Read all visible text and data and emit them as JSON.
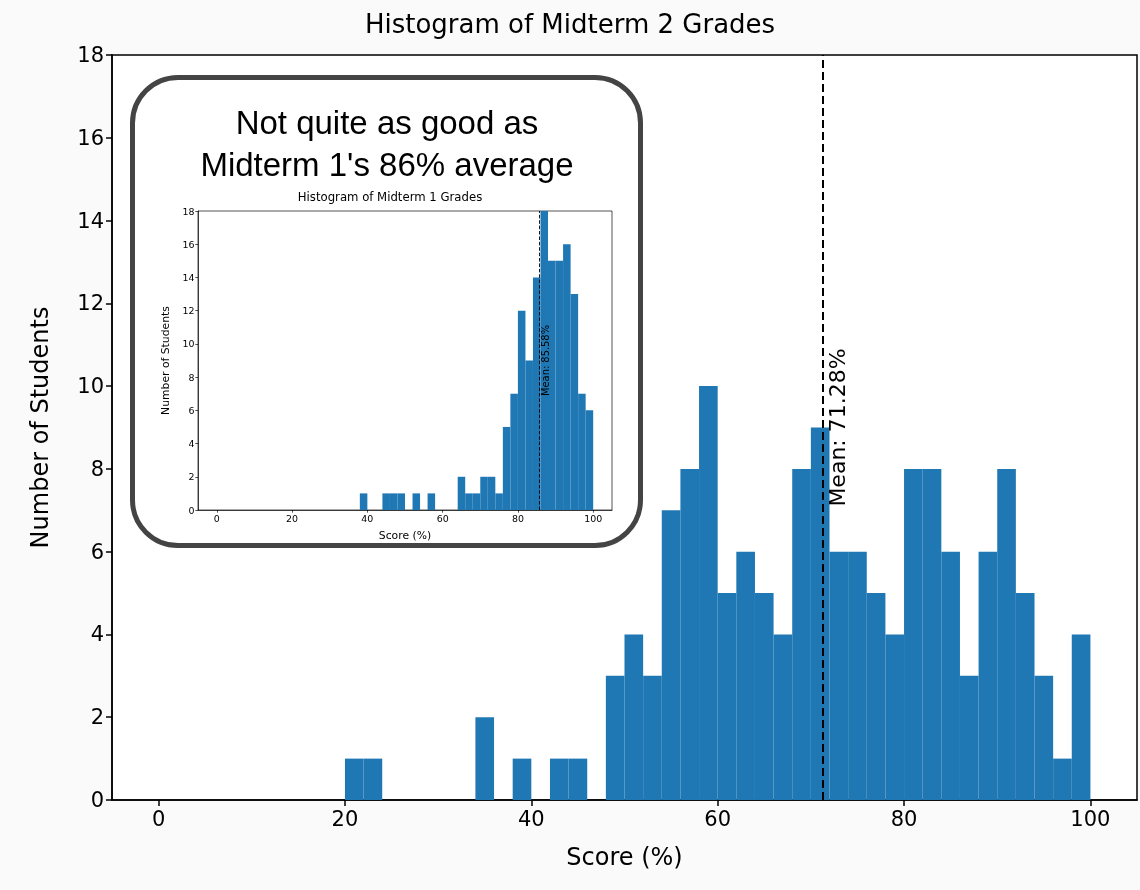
{
  "chart_data": [
    {
      "type": "histogram",
      "title": "Histogram of Midterm 2 Grades",
      "xlabel": "Score (%)",
      "ylabel": "Number of Students",
      "color": "#1f77b4",
      "bins": [
        20,
        22,
        24,
        26,
        28,
        30,
        32,
        34,
        36,
        38,
        40,
        42,
        44,
        46,
        48,
        50,
        52,
        54,
        56,
        58,
        60,
        62,
        64,
        66,
        68,
        70,
        72,
        74,
        76,
        78,
        80,
        82,
        84,
        86,
        88,
        90,
        92,
        94,
        96,
        98,
        100
      ],
      "values": [
        1,
        1,
        0,
        0,
        0,
        0,
        0,
        2,
        0,
        1,
        0,
        1,
        1,
        0,
        3,
        4,
        3,
        7,
        8,
        10,
        5,
        6,
        5,
        4,
        8,
        9,
        6,
        6,
        5,
        4,
        8,
        8,
        6,
        3,
        6,
        8,
        5,
        3,
        1,
        4
      ],
      "xlim": [
        -5,
        105
      ],
      "ylim": [
        0,
        18
      ],
      "xticks": [
        0,
        20,
        40,
        60,
        80,
        100
      ],
      "yticks": [
        0,
        2,
        4,
        6,
        8,
        10,
        12,
        14,
        16,
        18
      ],
      "ref_lines": [
        {
          "axis": "x",
          "value": 71.28,
          "label": "Mean: 71.28%",
          "color": "#000000",
          "line_style": "dashed"
        }
      ]
    },
    {
      "type": "histogram",
      "title": "Histogram of Midterm 1 Grades",
      "xlabel": "Score (%)",
      "ylabel": "Number of Students",
      "color": "#1f77b4",
      "annotations": [
        "Not quite as good as Midterm 1's 86% average"
      ],
      "bins": [
        38,
        40,
        42,
        44,
        46,
        48,
        50,
        52,
        54,
        56,
        58,
        60,
        62,
        64,
        66,
        68,
        70,
        72,
        74,
        76,
        78,
        80,
        82,
        84,
        86,
        88,
        90,
        92,
        94,
        96,
        98,
        100
      ],
      "values": [
        1,
        0,
        0,
        1,
        1,
        1,
        0,
        1,
        0,
        1,
        0,
        0,
        0,
        2,
        1,
        1,
        2,
        2,
        1,
        5,
        7,
        12,
        9,
        14,
        18,
        15,
        15,
        16,
        13,
        7,
        6
      ],
      "xlim": [
        -5,
        105
      ],
      "ylim": [
        0,
        18
      ],
      "xticks": [
        0,
        20,
        40,
        60,
        80,
        100
      ],
      "yticks": [
        0,
        2,
        4,
        6,
        8,
        10,
        12,
        14,
        16,
        18
      ],
      "ref_lines": [
        {
          "axis": "x",
          "value": 85.58,
          "label": "Mean: 85.58%",
          "color": "#000000",
          "line_style": "dashed"
        }
      ]
    }
  ]
}
